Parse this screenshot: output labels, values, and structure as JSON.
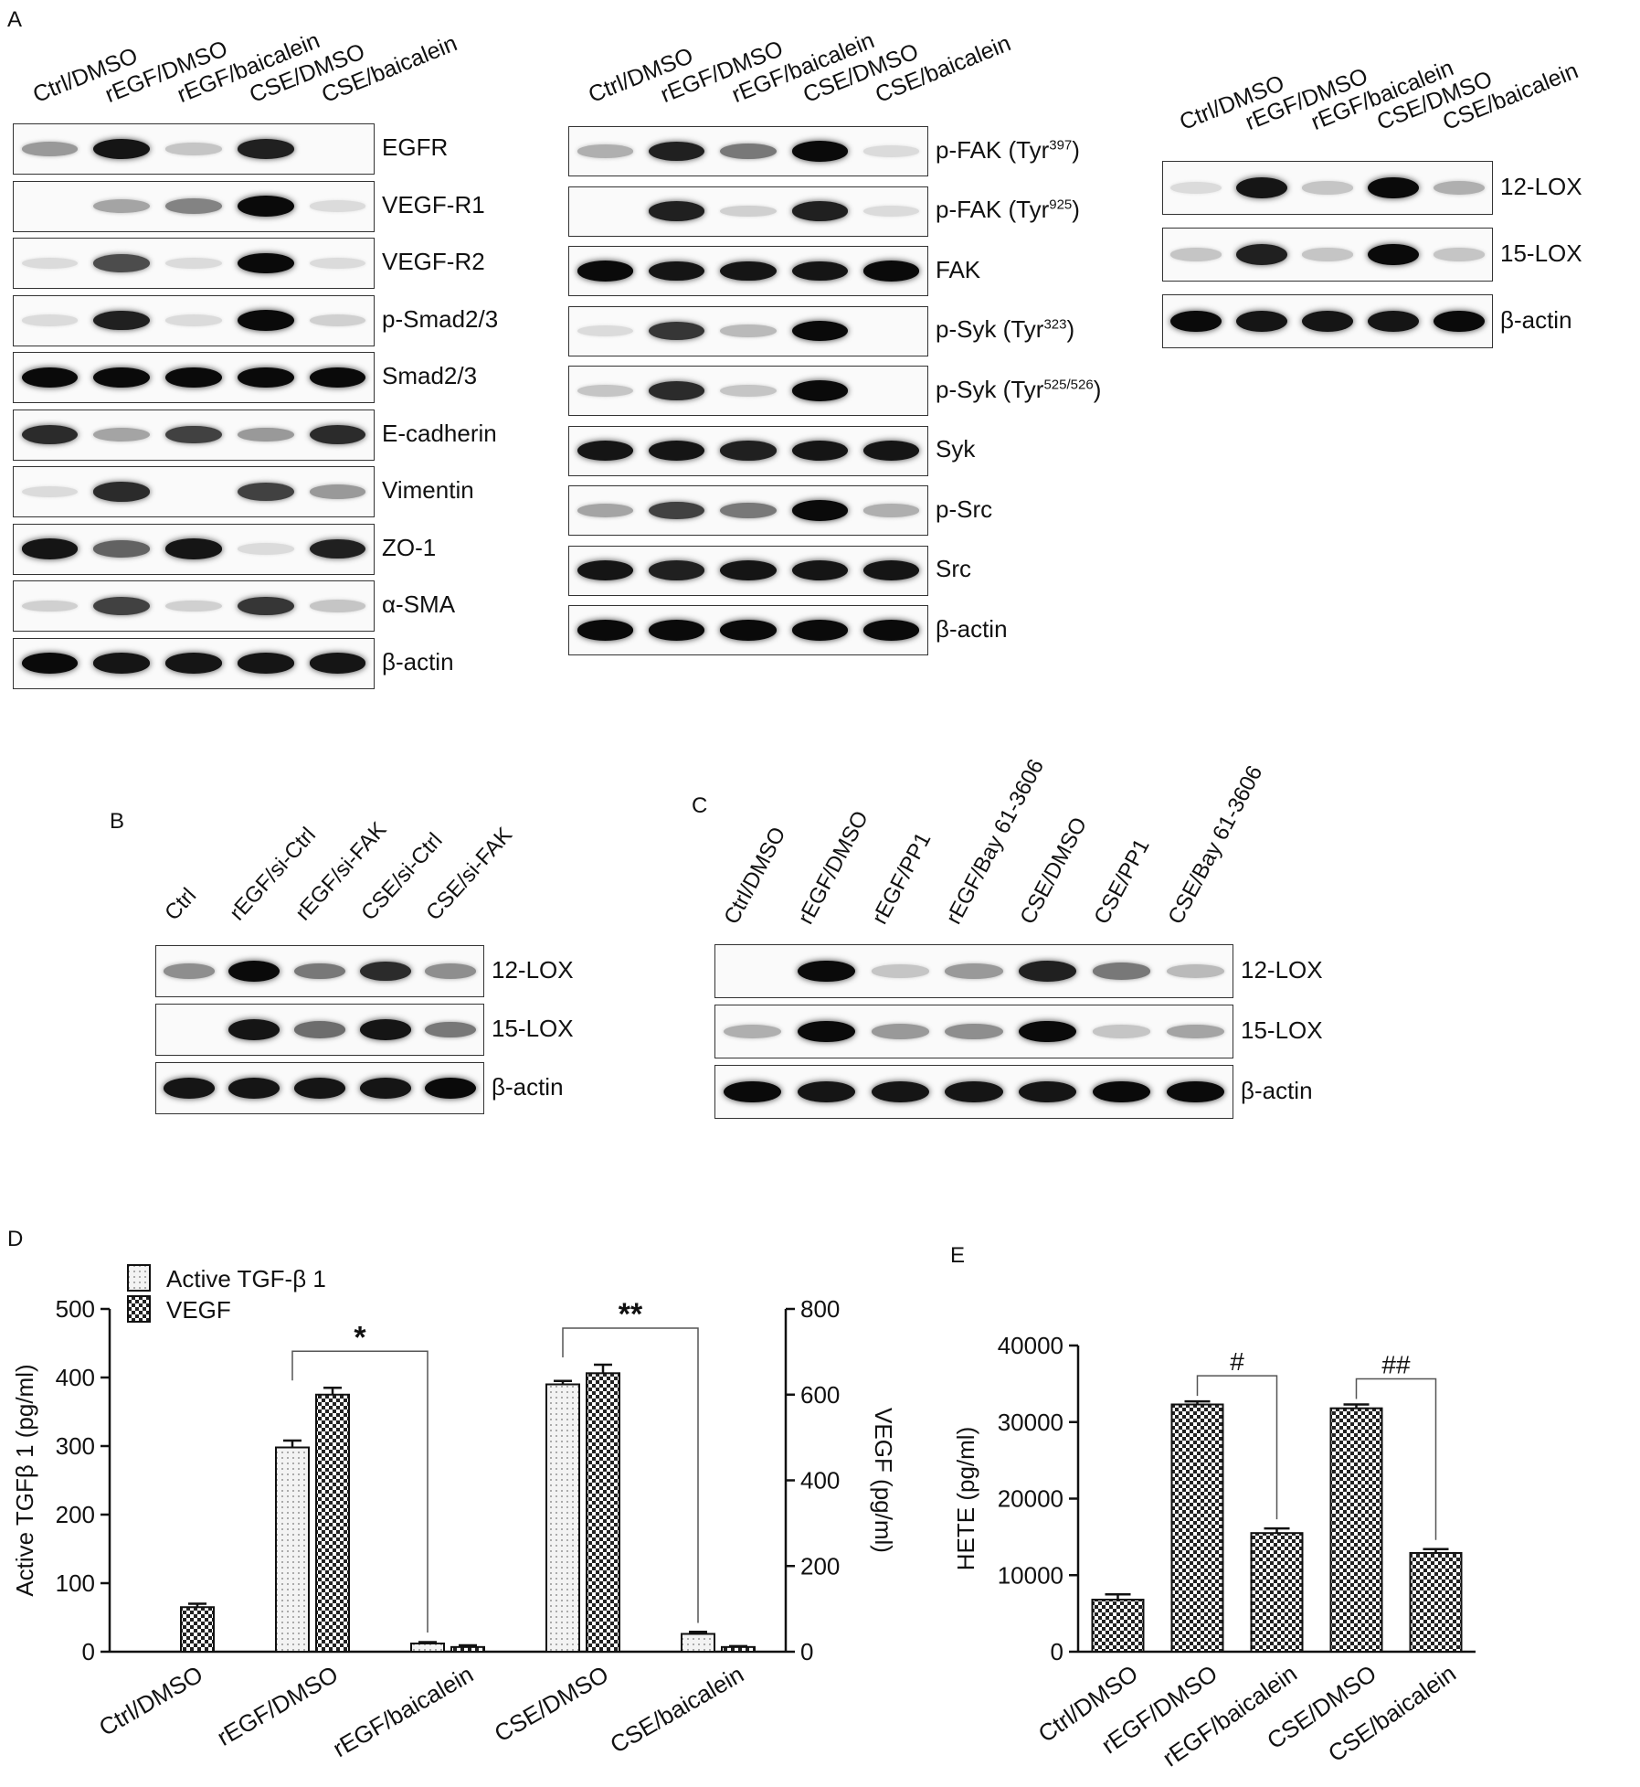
{
  "panelA": {
    "letter": "A",
    "block1": {
      "lanes": [
        "Ctrl/DMSO",
        "rEGF/DMSO",
        "rEGF/baicalein",
        "CSE/DMSO",
        "CSE/baicalein"
      ],
      "rows": [
        {
          "label": "EGFR",
          "sup": "",
          "label_end": "",
          "bands": [
            0.35,
            0.95,
            0.15,
            0.9,
            0
          ]
        },
        {
          "label": "VEGF-R1",
          "sup": "",
          "label_end": "",
          "bands": [
            0,
            0.3,
            0.45,
            1,
            0.05
          ]
        },
        {
          "label": "VEGF-R2",
          "sup": "",
          "label_end": "",
          "bands": [
            0.05,
            0.7,
            0.05,
            1,
            0.05
          ]
        },
        {
          "label": "p-Smad2/3",
          "sup": "",
          "label_end": "",
          "bands": [
            0.05,
            0.9,
            0.05,
            1,
            0.1
          ]
        },
        {
          "label": "Smad2/3",
          "sup": "",
          "label_end": "",
          "bands": [
            1,
            1,
            1,
            1,
            1
          ]
        },
        {
          "label": "E-cadherin",
          "sup": "",
          "label_end": "",
          "bands": [
            0.85,
            0.3,
            0.75,
            0.35,
            0.85
          ]
        },
        {
          "label": "Vimentin",
          "sup": "",
          "label_end": "",
          "bands": [
            0.05,
            0.85,
            0,
            0.75,
            0.35
          ]
        },
        {
          "label": "ZO-1",
          "sup": "",
          "label_end": "",
          "bands": [
            0.95,
            0.6,
            0.95,
            0.05,
            0.9
          ]
        },
        {
          "label": "α-SMA",
          "sup": "",
          "label_end": "",
          "bands": [
            0.1,
            0.75,
            0.1,
            0.8,
            0.15
          ]
        },
        {
          "label": "β-actin",
          "sup": "",
          "label_end": "",
          "bands": [
            1,
            0.95,
            0.95,
            0.95,
            0.95
          ]
        }
      ]
    },
    "block2": {
      "lanes": [
        "Ctrl/DMSO",
        "rEGF/DMSO",
        "rEGF/baicalein",
        "CSE/DMSO",
        "CSE/baicalein"
      ],
      "rows": [
        {
          "label": "p-FAK (Tyr",
          "sup": "397",
          "label_end": ")",
          "bands": [
            0.25,
            0.9,
            0.5,
            1,
            0.05
          ]
        },
        {
          "label": "p-FAK (Tyr",
          "sup": "925",
          "label_end": ")",
          "bands": [
            0,
            0.9,
            0.1,
            0.9,
            0.05
          ]
        },
        {
          "label": "FAK",
          "sup": "",
          "label_end": "",
          "bands": [
            1,
            0.95,
            0.95,
            0.95,
            1
          ]
        },
        {
          "label": "p-Syk (Tyr",
          "sup": "323",
          "label_end": ")",
          "bands": [
            0.05,
            0.8,
            0.2,
            1,
            0
          ]
        },
        {
          "label": "p-Syk (Tyr",
          "sup": "525/526",
          "label_end": ")",
          "bands": [
            0.15,
            0.85,
            0.15,
            1,
            0
          ]
        },
        {
          "label": "Syk",
          "sup": "",
          "label_end": "",
          "bands": [
            0.95,
            0.95,
            0.9,
            0.95,
            0.95
          ]
        },
        {
          "label": "p-Src",
          "sup": "",
          "label_end": "",
          "bands": [
            0.3,
            0.75,
            0.5,
            1,
            0.25
          ]
        },
        {
          "label": "Src",
          "sup": "",
          "label_end": "",
          "bands": [
            0.95,
            0.9,
            0.95,
            0.95,
            0.95
          ]
        },
        {
          "label": "β-actin",
          "sup": "",
          "label_end": "",
          "bands": [
            1,
            1,
            1,
            1,
            1
          ]
        }
      ]
    },
    "block3": {
      "lanes": [
        "Ctrl/DMSO",
        "rEGF/DMSO",
        "rEGF/baicalein",
        "CSE/DMSO",
        "CSE/baicalein"
      ],
      "rows": [
        {
          "label": "12-LOX",
          "sup": "",
          "label_end": "",
          "bands": [
            0.05,
            0.95,
            0.15,
            1,
            0.25
          ]
        },
        {
          "label": "15-LOX",
          "sup": "",
          "label_end": "",
          "bands": [
            0.15,
            0.9,
            0.15,
            1,
            0.15
          ]
        },
        {
          "label": "β-actin",
          "sup": "",
          "label_end": "",
          "bands": [
            1,
            0.95,
            0.95,
            0.95,
            1
          ]
        }
      ]
    }
  },
  "panelB": {
    "letter": "B",
    "lanes": [
      "Ctrl",
      "rEGF/si-Ctrl",
      "rEGF/si-FAK",
      "CSE/si-Ctrl",
      "CSE/si-FAK"
    ],
    "rows": [
      {
        "label": "12-LOX",
        "sup": "",
        "label_end": "",
        "bands": [
          0.4,
          1,
          0.5,
          0.85,
          0.4
        ]
      },
      {
        "label": "15-LOX",
        "sup": "",
        "label_end": "",
        "bands": [
          0,
          0.95,
          0.55,
          0.95,
          0.5
        ]
      },
      {
        "label": "β-actin",
        "sup": "",
        "label_end": "",
        "bands": [
          0.95,
          0.95,
          0.95,
          0.95,
          1
        ]
      }
    ]
  },
  "panelC": {
    "letter": "C",
    "lanes": [
      "Ctrl/DMSO",
      "rEGF/DMSO",
      "rEGF/PP1",
      "rEGF/Bay 61-3606",
      "CSE/DMSO",
      "CSE/PP1",
      "CSE/Bay 61-3606"
    ],
    "rows": [
      {
        "label": "12-LOX",
        "sup": "",
        "label_end": "",
        "bands": [
          0,
          1,
          0.15,
          0.35,
          0.9,
          0.5,
          0.2
        ]
      },
      {
        "label": "15-LOX",
        "sup": "",
        "label_end": "",
        "bands": [
          0.25,
          1,
          0.35,
          0.4,
          1,
          0.15,
          0.3
        ]
      },
      {
        "label": "β-actin",
        "sup": "",
        "label_end": "",
        "bands": [
          1,
          0.95,
          0.95,
          0.95,
          0.95,
          1,
          1
        ]
      }
    ]
  },
  "chart_data": [
    {
      "panel": "D",
      "type": "bar",
      "categories": [
        "Ctrl/DMSO",
        "rEGF/DMSO",
        "rEGF/baicalein",
        "CSE/DMSO",
        "CSE/baicalein"
      ],
      "series": [
        {
          "name": "Active TGF-β 1",
          "axis": "left",
          "values": [
            0,
            298,
            12,
            390,
            26
          ],
          "errors": [
            0,
            10,
            2,
            5,
            3
          ]
        },
        {
          "name": "VEGF",
          "axis": "right",
          "values": [
            104,
            600,
            11,
            650,
            11
          ],
          "errors": [
            8,
            16,
            4,
            20,
            2
          ]
        }
      ],
      "ylabel": "Active TGFβ 1 (pg/ml)",
      "ylabel_right": "VEGF (pg/ml)",
      "ylim": [
        0,
        500
      ],
      "yticks": [
        "0",
        "100",
        "200",
        "300",
        "400",
        "500"
      ],
      "ylim_right": [
        0,
        800
      ],
      "yticks_right": [
        "0",
        "200",
        "400",
        "600",
        "800"
      ],
      "significance": [
        {
          "from": "rEGF/DMSO",
          "to": "rEGF/baicalein",
          "mark": "*"
        },
        {
          "from": "CSE/DMSO",
          "to": "CSE/baicalein",
          "mark": "**"
        }
      ]
    },
    {
      "panel": "E",
      "type": "bar",
      "categories": [
        "Ctrl/DMSO",
        "rEGF/DMSO",
        "rEGF/baicalein",
        "CSE/DMSO",
        "CSE/baicalein"
      ],
      "series": [
        {
          "values": [
            6800,
            32300,
            15500,
            31800,
            12900
          ],
          "errors": [
            700,
            400,
            600,
            500,
            500
          ]
        }
      ],
      "ylabel": "HETE (pg/ml)",
      "ylim": [
        0,
        40000
      ],
      "yticks": [
        "0",
        "10000",
        "20000",
        "30000",
        "40000"
      ],
      "significance": [
        {
          "from": "rEGF/DMSO",
          "to": "rEGF/baicalein",
          "mark": "#"
        },
        {
          "from": "CSE/DMSO",
          "to": "CSE/baicalein",
          "mark": "##"
        }
      ]
    }
  ]
}
